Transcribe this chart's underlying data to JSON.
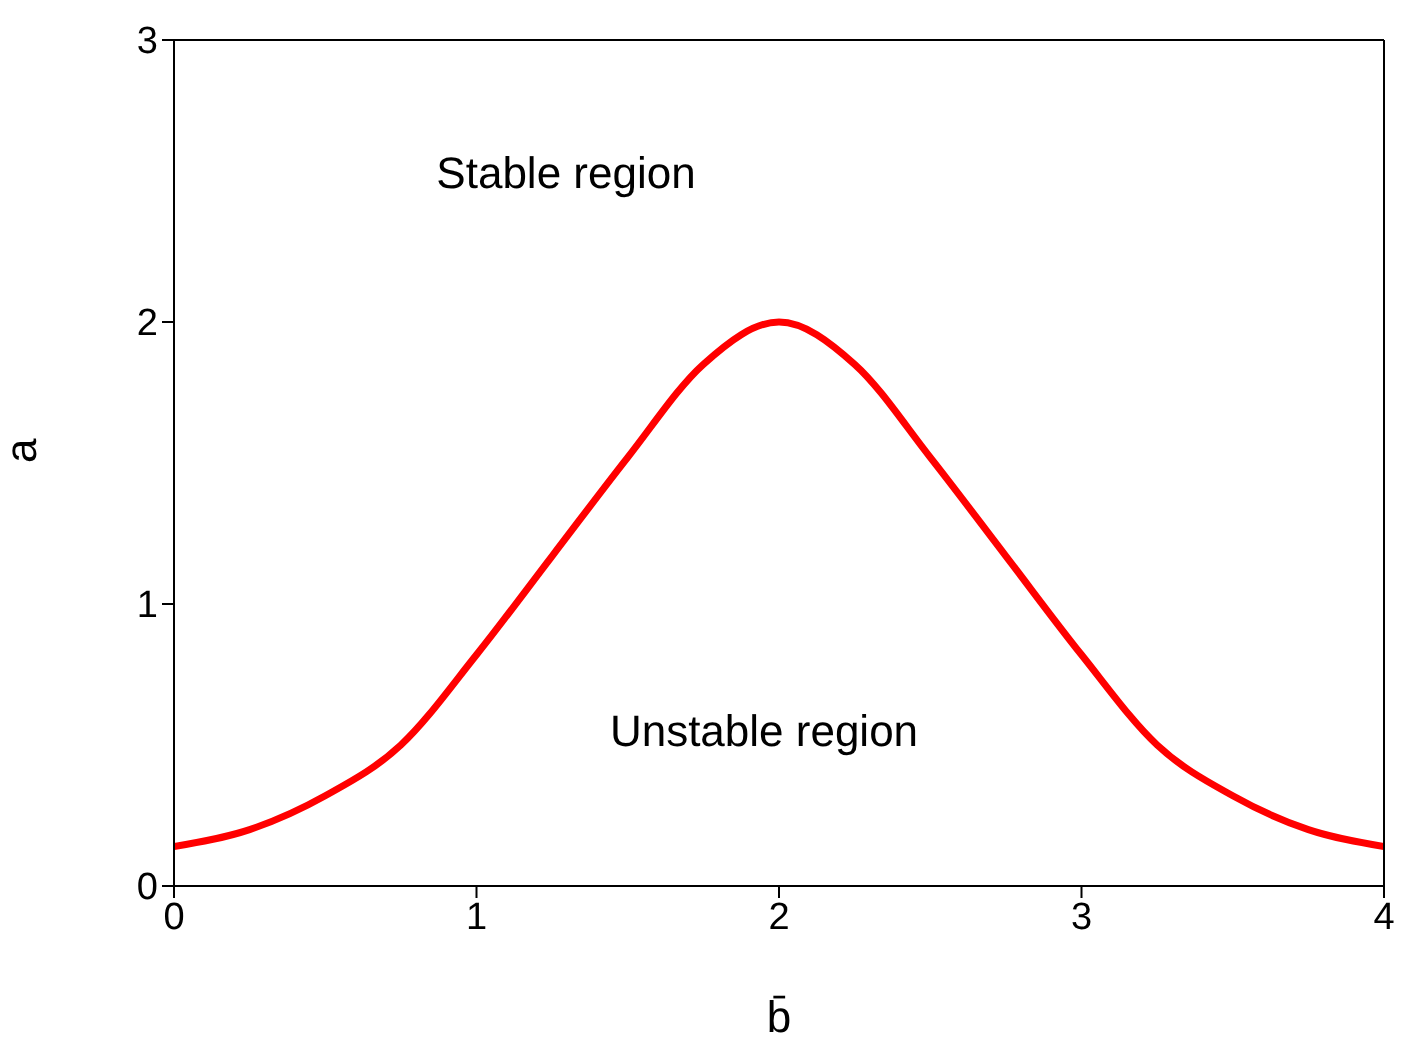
{
  "chart_data": {
    "type": "line",
    "xlabel": "b̄",
    "ylabel": "a",
    "x": [
      0,
      0.25,
      0.5,
      0.75,
      1,
      1.25,
      1.5,
      1.75,
      2,
      2.25,
      2.5,
      2.75,
      3,
      3.25,
      3.5,
      3.75,
      4
    ],
    "series": [
      {
        "color": "#ff0000",
        "values": [
          0.14,
          0.2,
          0.32,
          0.5,
          0.82,
          1.17,
          1.52,
          1.85,
          2.0,
          1.85,
          1.52,
          1.17,
          0.82,
          0.5,
          0.32,
          0.2,
          0.14
        ]
      }
    ],
    "xlim": [
      0,
      4
    ],
    "xticks": [
      0,
      1,
      2,
      3,
      4
    ],
    "ylim": [
      0,
      3
    ],
    "yticks": [
      0,
      1,
      2,
      3
    ],
    "grid": false,
    "legend": false,
    "marker": "none",
    "line_style": "solid",
    "annotations": [
      "Stable region",
      "Unstable region"
    ]
  }
}
